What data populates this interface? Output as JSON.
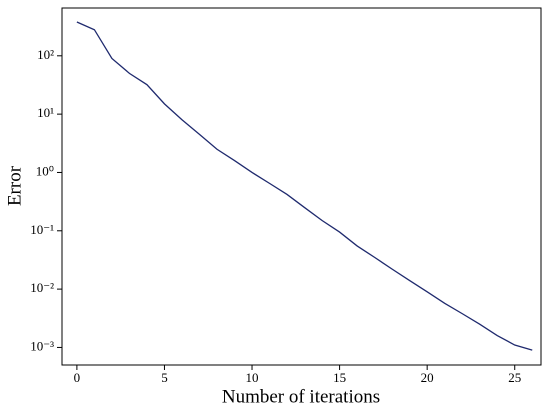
{
  "chart_data": {
    "type": "line",
    "xlabel": "Number of iterations",
    "ylabel": "Error",
    "x": [
      0,
      1,
      2,
      3,
      4,
      5,
      6,
      7,
      8,
      9,
      10,
      11,
      12,
      13,
      14,
      15,
      16,
      17,
      18,
      19,
      20,
      21,
      22,
      23,
      24,
      25,
      26
    ],
    "series": [
      {
        "name": "Error",
        "color": "#1f2a6e",
        "values": [
          380,
          280,
          90,
          50,
          32,
          15,
          8,
          4.5,
          2.5,
          1.6,
          1.0,
          0.65,
          0.42,
          0.25,
          0.15,
          0.095,
          0.055,
          0.035,
          0.022,
          0.014,
          0.009,
          0.0057,
          0.0038,
          0.0025,
          0.0016,
          0.0011,
          0.0009
        ]
      }
    ],
    "xlim": [
      -0.85,
      26.5
    ],
    "xticks": [
      0,
      5,
      10,
      15,
      20,
      25
    ],
    "ylim": [
      0.0005,
      660
    ],
    "log_y": true,
    "yticks": [
      {
        "value": 0.001,
        "label": "10⁻³"
      },
      {
        "value": 0.01,
        "label": "10⁻²"
      },
      {
        "value": 0.1,
        "label": "10⁻¹"
      },
      {
        "value": 1,
        "label": "10⁰"
      },
      {
        "value": 10,
        "label": "10¹"
      },
      {
        "value": 100,
        "label": "10²"
      }
    ],
    "grid": false
  }
}
